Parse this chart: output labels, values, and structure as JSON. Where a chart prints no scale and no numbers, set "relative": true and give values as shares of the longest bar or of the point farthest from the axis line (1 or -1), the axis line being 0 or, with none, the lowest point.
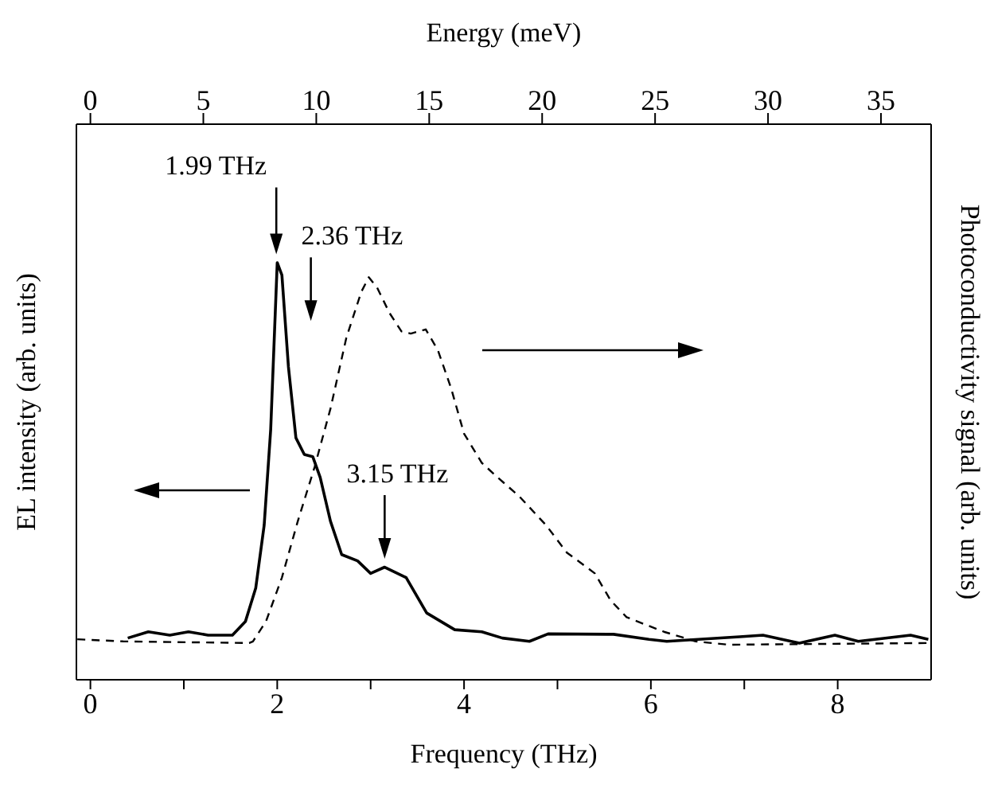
{
  "chart_data": {
    "type": "line",
    "relative": true,
    "xlabel": "Frequency (THz)",
    "x2label": "Energy (meV)",
    "ylabel": "EL intensity (arb. units)",
    "y2label": "Photoconductivity signal (arb. units)",
    "xlim": [
      -0.15,
      9.0
    ],
    "xticks": [
      0,
      {
        "value": 1,
        "label": null
      },
      2,
      {
        "value": 3,
        "label": null
      },
      4,
      {
        "value": 5,
        "label": null
      },
      6,
      {
        "value": 7,
        "label": null
      },
      8
    ],
    "x2lim": [
      -0.62,
      37.22
    ],
    "x2ticks": [
      0,
      5,
      10,
      15,
      20,
      25,
      30,
      35
    ],
    "grid": false,
    "legend": false,
    "marker": "none",
    "series": [
      {
        "color": "#000000",
        "line_style": "solid",
        "x": [
          0.4,
          0.62,
          0.85,
          1.05,
          1.26,
          1.52,
          1.66,
          1.77,
          1.86,
          1.93,
          2.0,
          2.05,
          2.12,
          2.2,
          2.29,
          2.38,
          2.46,
          2.57,
          2.69,
          2.86,
          3.0,
          3.15,
          3.38,
          3.6,
          3.9,
          4.19,
          4.41,
          4.7,
          4.9,
          5.6,
          5.98,
          6.17,
          6.95,
          7.2,
          7.59,
          7.97,
          8.22,
          8.78,
          8.97
        ],
        "values": [
          0.1,
          0.115,
          0.107,
          0.115,
          0.107,
          0.107,
          0.14,
          0.22,
          0.37,
          0.6,
          1.0,
          0.97,
          0.75,
          0.58,
          0.54,
          0.535,
          0.485,
          0.38,
          0.3,
          0.285,
          0.255,
          0.27,
          0.245,
          0.16,
          0.12,
          0.115,
          0.1,
          0.092,
          0.11,
          0.109,
          0.097,
          0.092,
          0.103,
          0.107,
          0.088,
          0.107,
          0.092,
          0.107,
          0.097
        ]
      },
      {
        "color": "#000000",
        "line_style": "dashed",
        "x": [
          -0.14,
          0.35,
          1.7,
          1.74,
          1.88,
          2.05,
          2.22,
          2.4,
          2.57,
          2.74,
          2.9,
          2.98,
          3.07,
          3.2,
          3.33,
          3.43,
          3.59,
          3.72,
          3.86,
          4.0,
          4.19,
          4.36,
          4.59,
          4.88,
          5.1,
          5.4,
          5.57,
          5.74,
          6.14,
          6.48,
          6.83,
          8.98
        ],
        "values": [
          0.097,
          0.092,
          0.088,
          0.092,
          0.14,
          0.245,
          0.38,
          0.51,
          0.65,
          0.82,
          0.93,
          0.965,
          0.94,
          0.88,
          0.835,
          0.83,
          0.84,
          0.79,
          0.7,
          0.59,
          0.52,
          0.485,
          0.44,
          0.37,
          0.305,
          0.255,
          0.19,
          0.15,
          0.115,
          0.092,
          0.084,
          0.088
        ]
      }
    ],
    "annotations": [
      "1.99 THz",
      "2.36 THz",
      "3.15 THz"
    ]
  }
}
